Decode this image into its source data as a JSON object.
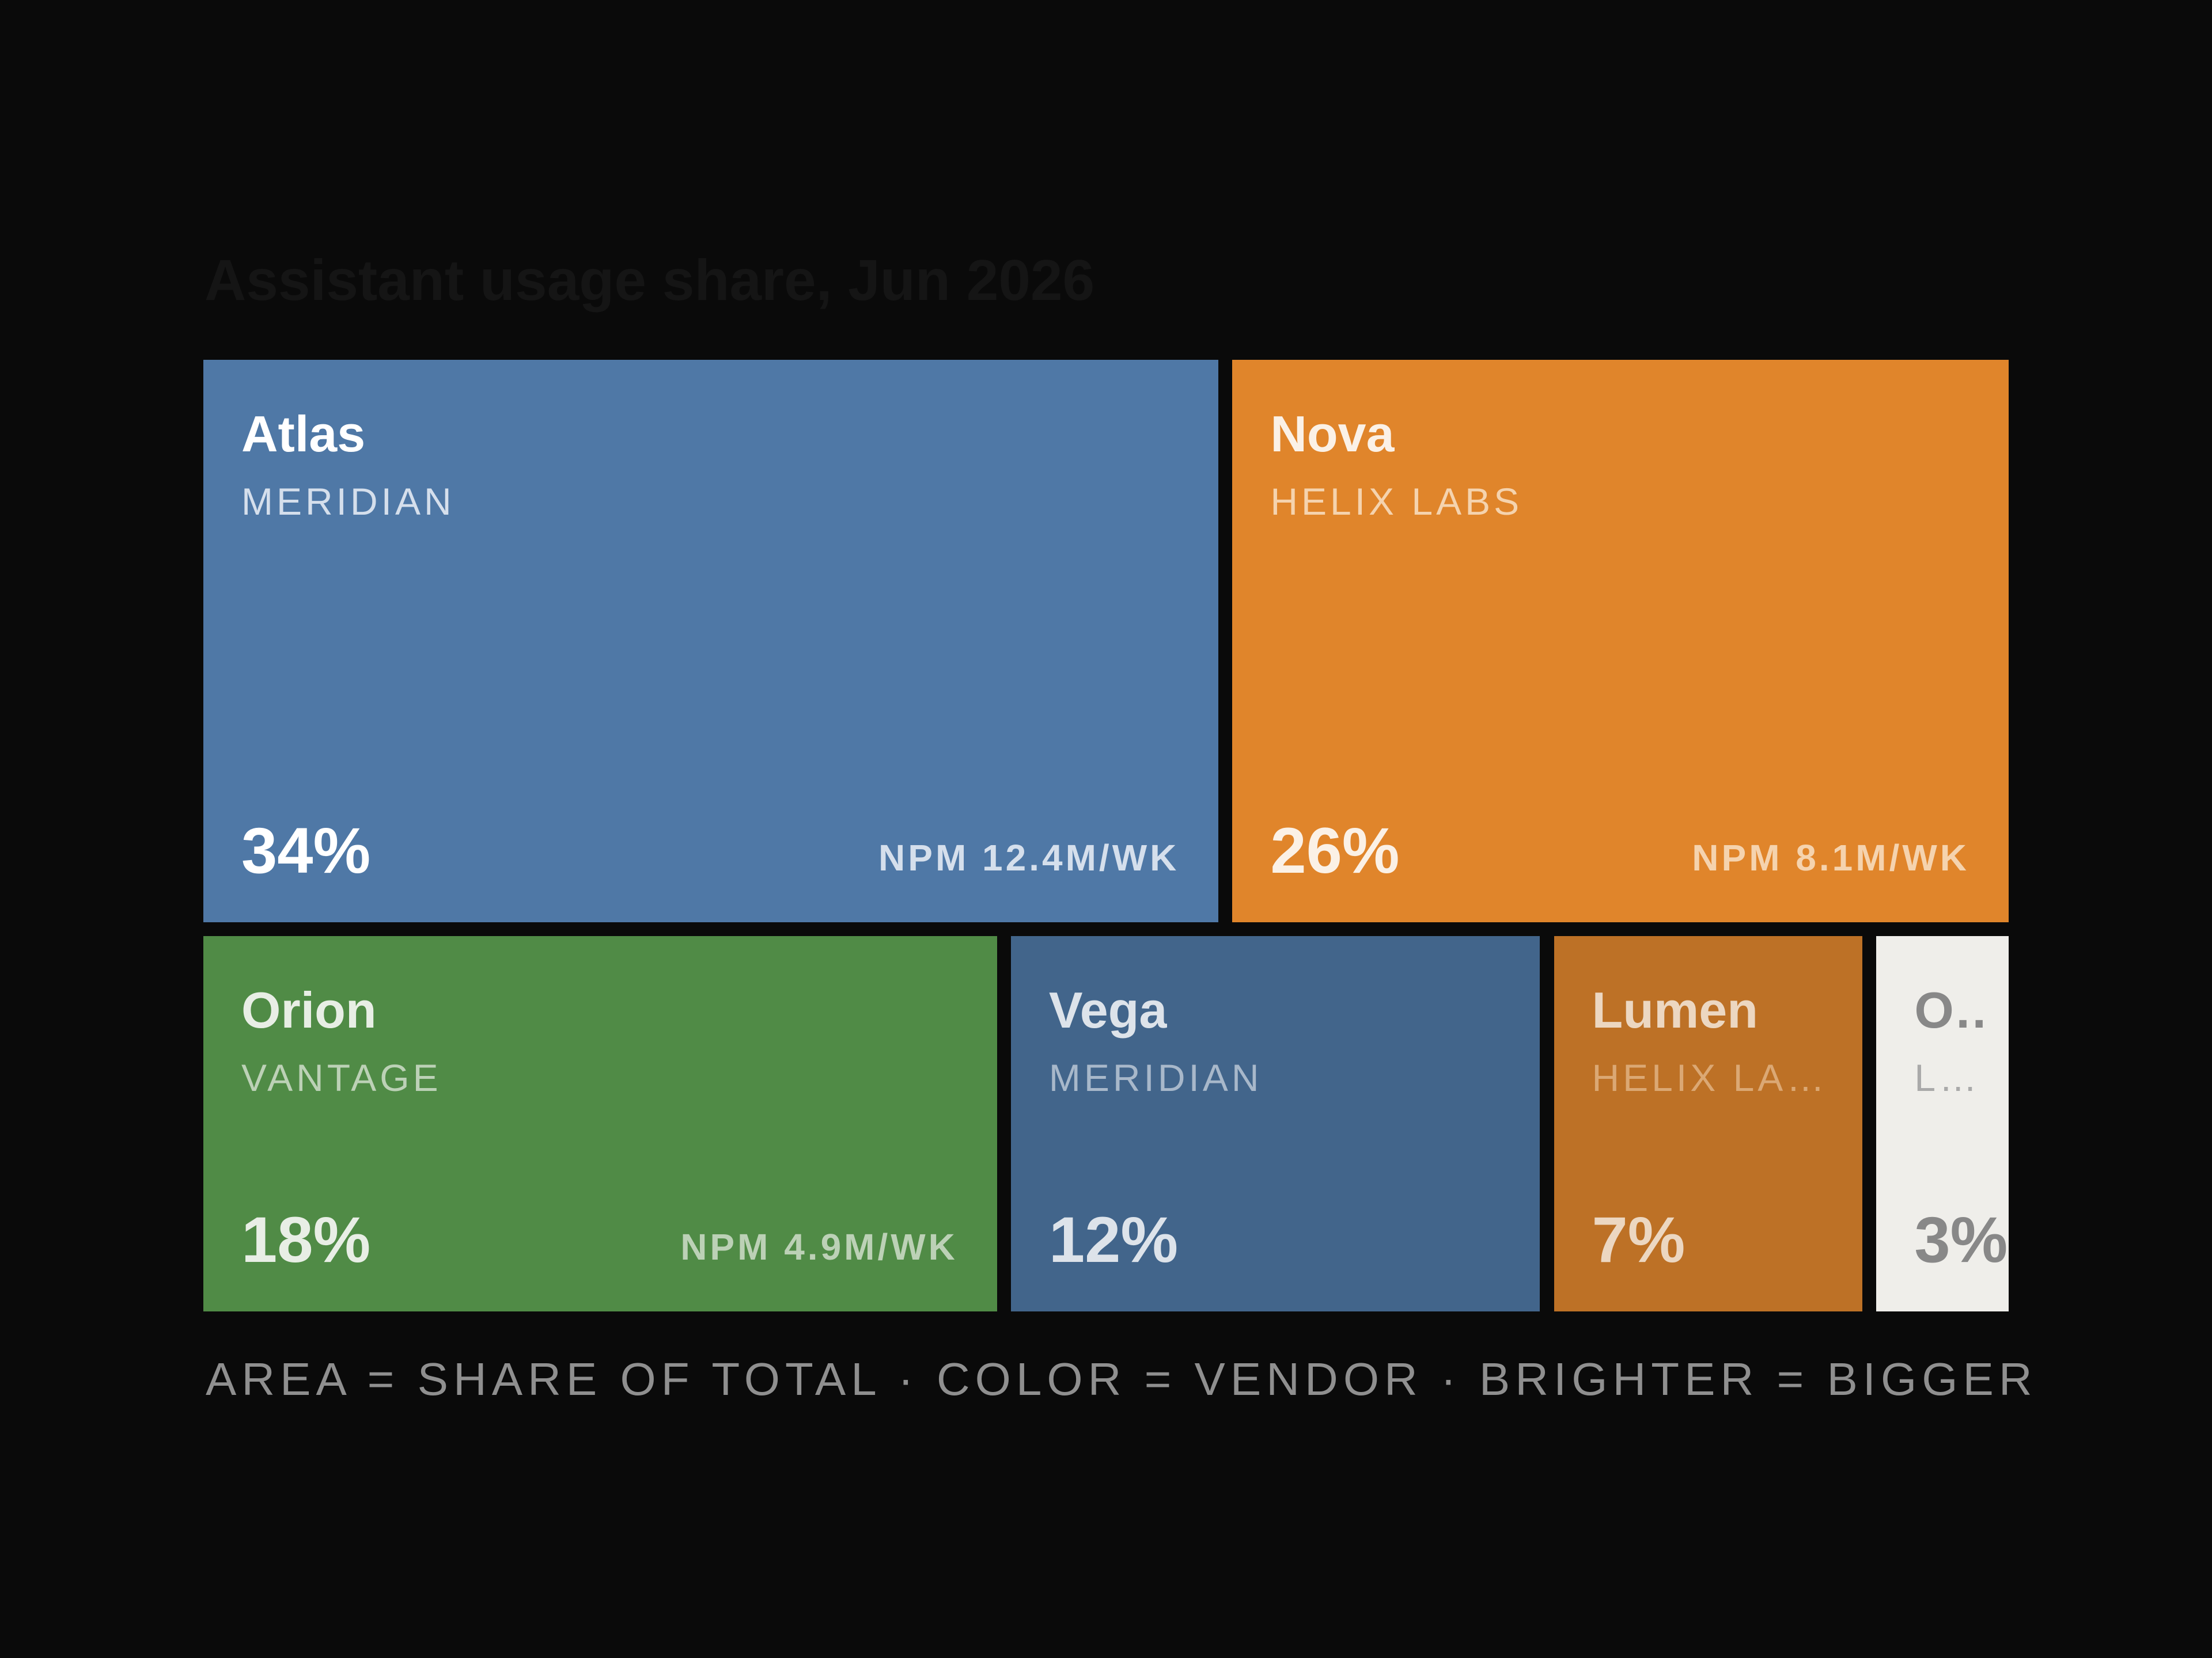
{
  "chart_data": {
    "type": "treemap",
    "title": "Assistant usage share, Jun 2026",
    "caption": "AREA = SHARE OF TOTAL · COLOR = VENDOR · BRIGHTER = BIGGER",
    "items": [
      {
        "name": "Atlas",
        "vendor": "MERIDIAN",
        "share": 34,
        "share_label": "34%",
        "npm": "NPM 12.4M/WK",
        "color": "#4f78a6",
        "text_color": "#ffffff",
        "sub_color": "#d5dfec"
      },
      {
        "name": "Nova",
        "vendor": "HELIX LABS",
        "share": 26,
        "share_label": "26%",
        "npm": "NPM 8.1M/WK",
        "color": "#e0852b",
        "text_color": "#fbf1e6",
        "sub_color": "#f5d3ae"
      },
      {
        "name": "Orion",
        "vendor": "VANTAGE",
        "share": 18,
        "share_label": "18%",
        "npm": "NPM 4.9M/WK",
        "color": "#508b46",
        "text_color": "#e8eee5",
        "sub_color": "#bcd1b6"
      },
      {
        "name": "Vega",
        "vendor": "MERIDIAN",
        "share": 12,
        "share_label": "12%",
        "npm": "",
        "color": "#42658b",
        "text_color": "#dde3ea",
        "sub_color": "#a8b8ca"
      },
      {
        "name": "Lumen",
        "vendor": "HELIX LABS",
        "share": 7,
        "share_label": "7%",
        "npm": "",
        "color": "#bd7126",
        "text_color": "#ecd7c1",
        "sub_color": "#dba874"
      },
      {
        "name": "Other",
        "vendor": "LONG TAIL",
        "share": 3,
        "share_label": "3%",
        "npm": "",
        "color": "#efeeea",
        "text_color": "#888888",
        "sub_color": "#a9a9a9"
      }
    ]
  }
}
